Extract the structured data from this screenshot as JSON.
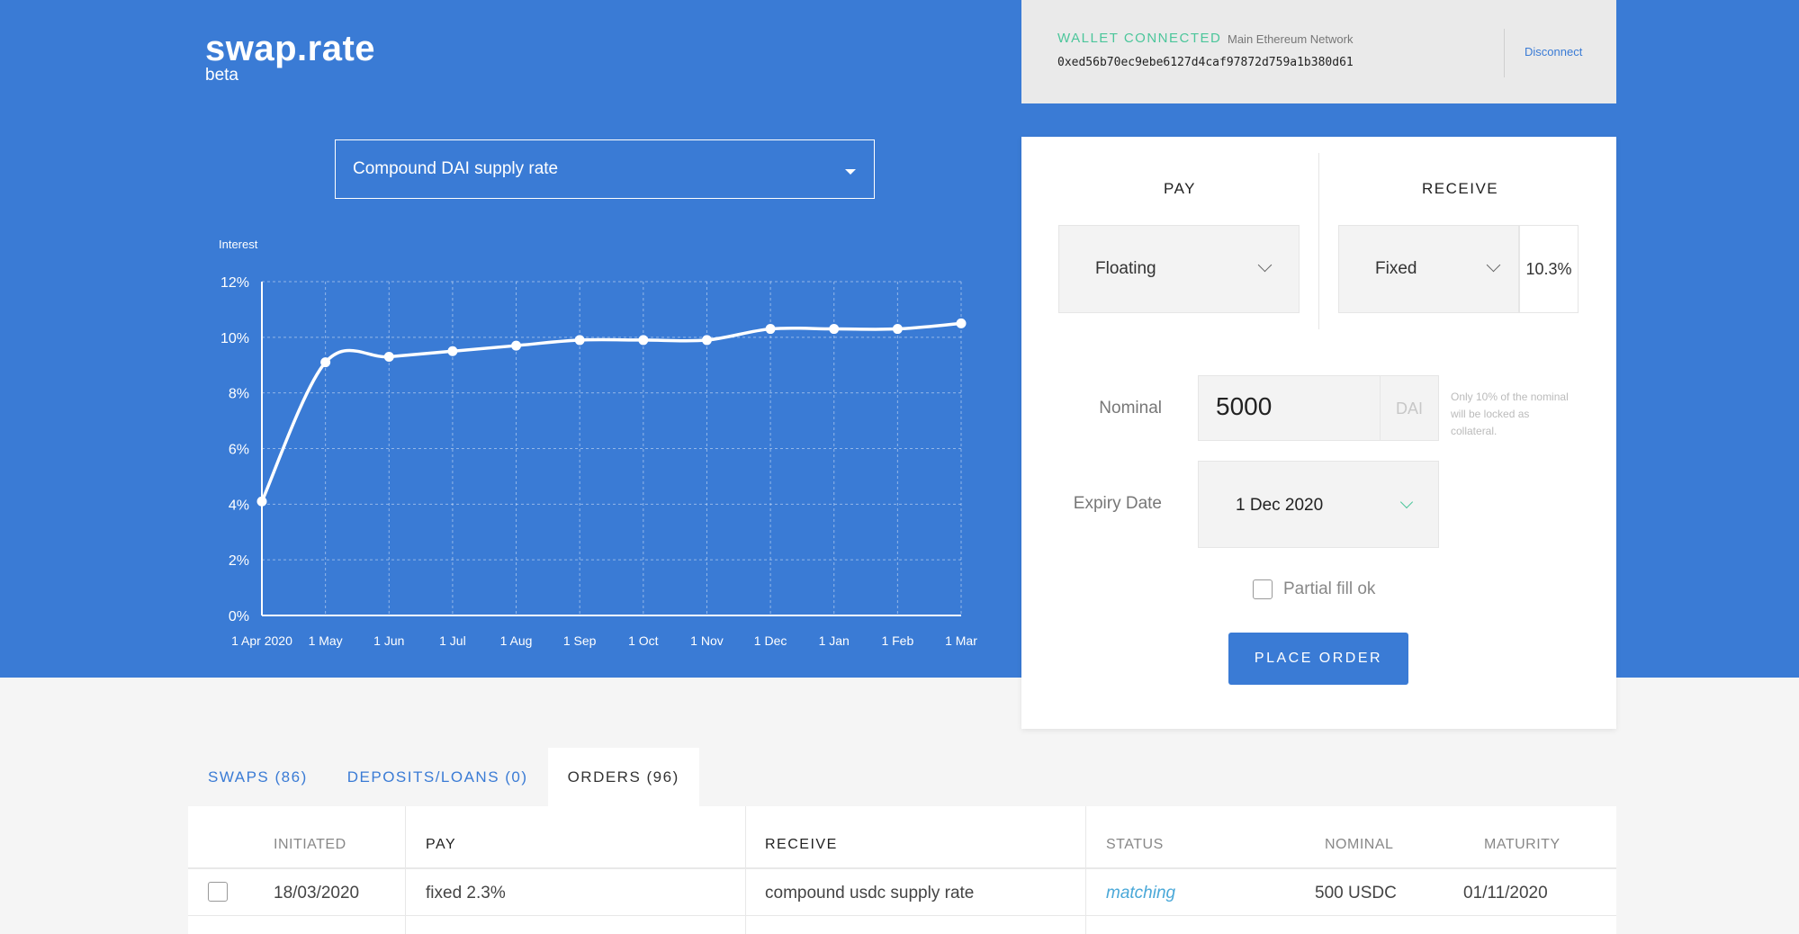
{
  "brand": {
    "name": "swap.rate",
    "tag": "beta"
  },
  "rate_selector": {
    "value": "Compound DAI supply rate"
  },
  "wallet": {
    "status": "WALLET CONNECTED",
    "network": "Main Ethereum Network",
    "address": "0xed56b70ec9ebe6127d4caf97872d759a1b380d61",
    "disconnect_label": "Disconnect"
  },
  "order_form": {
    "pay_heading": "PAY",
    "receive_heading": "RECEIVE",
    "pay_type": "Floating",
    "receive_type": "Fixed",
    "fixed_rate": "10.3%",
    "nominal_label": "Nominal",
    "nominal_value": "5000",
    "nominal_unit": "DAI",
    "nominal_hint": "Only 10% of the nominal will be locked as collateral.",
    "expiry_label": "Expiry Date",
    "expiry_value": "1 Dec 2020",
    "partial_fill_label": "Partial fill ok",
    "place_order_label": "PLACE ORDER"
  },
  "tabs": [
    {
      "label": "SWAPS (86)",
      "active": false
    },
    {
      "label": "DEPOSITS/LOANS (0)",
      "active": false
    },
    {
      "label": "ORDERS (96)",
      "active": true
    }
  ],
  "orders_table": {
    "columns": [
      "INITIATED",
      "PAY",
      "RECEIVE",
      "STATUS",
      "NOMINAL",
      "MATURITY"
    ],
    "rows": [
      {
        "initiated": "18/03/2020",
        "pay": "fixed 2.3%",
        "receive": "compound usdc supply rate",
        "status": "matching",
        "nominal": "500 USDC",
        "maturity": "01/11/2020"
      }
    ]
  },
  "chart_data": {
    "type": "line",
    "ylabel": "Interest",
    "xlabel": "",
    "categories": [
      "1 Apr 2020",
      "1 May",
      "1 Jun",
      "1 Jul",
      "1 Aug",
      "1 Sep",
      "1 Oct",
      "1 Nov",
      "1 Dec",
      "1 Jan",
      "1 Feb",
      "1 Mar"
    ],
    "series": [
      {
        "values": [
          4.1,
          9.1,
          9.3,
          9.5,
          9.7,
          9.9,
          9.9,
          9.9,
          10.3,
          10.3,
          10.3,
          10.5
        ]
      }
    ],
    "ylim": [
      0,
      12
    ],
    "yticks": [
      0,
      2,
      4,
      6,
      8,
      10,
      12
    ],
    "ytick_labels": [
      "0%",
      "2%",
      "4%",
      "6%",
      "8%",
      "10%",
      "12%"
    ],
    "grid": true,
    "line_color": "#ffffff"
  }
}
